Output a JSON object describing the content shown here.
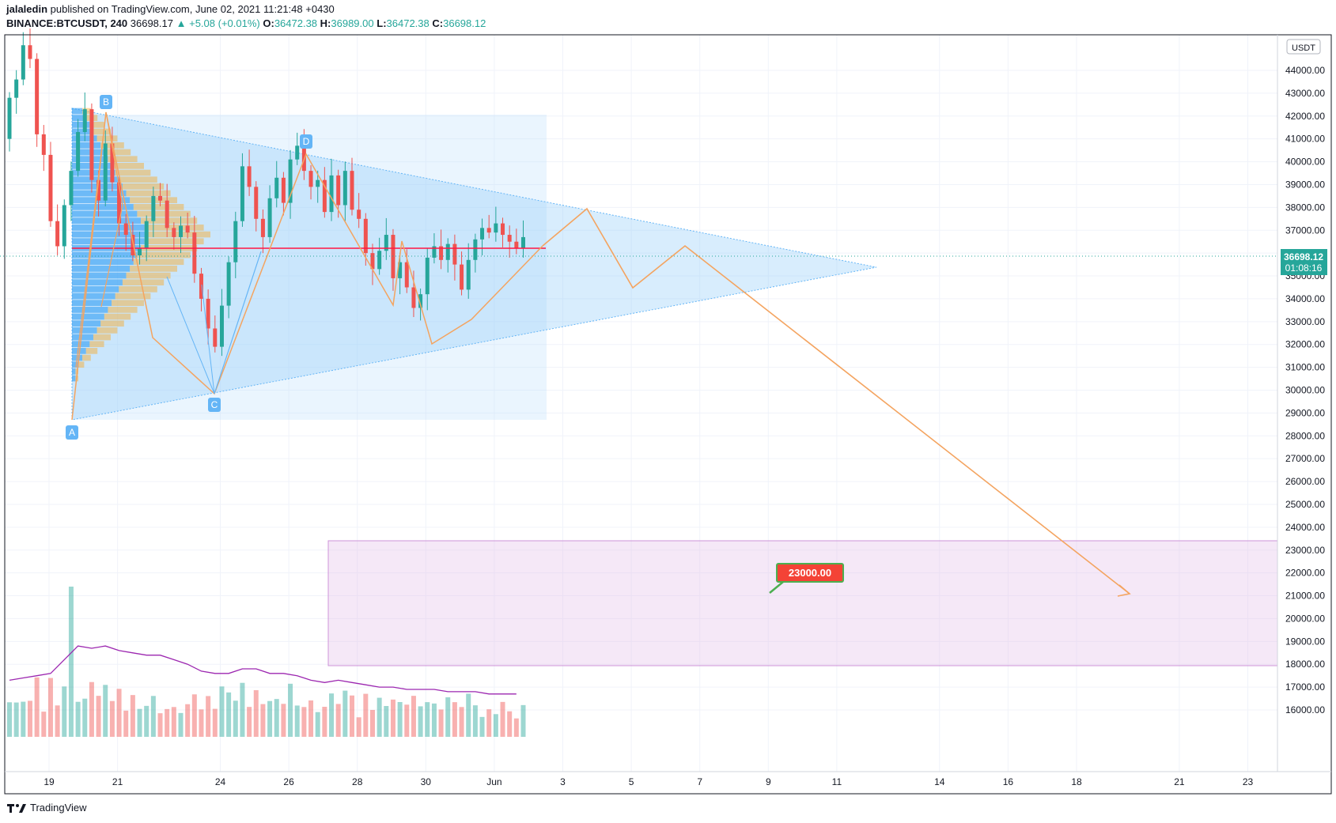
{
  "header": {
    "author": "jalaledin",
    "published": "published on TradingView.com, June 02, 2021 11:21:48 +0430",
    "symbol": "BINANCE:BTCUSDT, 240",
    "last": "36698.17",
    "change": "+5.08 (+0.01%)",
    "o_label": "O:",
    "o_val": "36472.38",
    "h_label": "H:",
    "h_val": "36989.00",
    "l_label": "L:",
    "l_val": "36472.38",
    "c_label": "C:",
    "c_val": "36698.12"
  },
  "footer": {
    "brand": "TradingView"
  },
  "colors": {
    "up": "#26a69a",
    "down": "#ef5350",
    "triangle": "#90caf9",
    "zone": "#e1bee7",
    "pattern": "#f4a460",
    "resistance": "#ff0000",
    "volume_ma": "#9c27b0",
    "target_badge": "#f44336"
  },
  "chart_data": {
    "type": "candlestick",
    "symbol": "BINANCE:BTCUSDT",
    "interval": "240",
    "currency_badge": "USDT",
    "y_ticks": [
      "44000.00",
      "43000.00",
      "42000.00",
      "41000.00",
      "40000.00",
      "39000.00",
      "38000.00",
      "37000.00",
      "36000.00",
      "35000.00",
      "34000.00",
      "33000.00",
      "32000.00",
      "31000.00",
      "30000.00",
      "29000.00",
      "28000.00",
      "27000.00",
      "26000.00",
      "25000.00",
      "24000.00",
      "23000.00",
      "22000.00",
      "21000.00",
      "20000.00",
      "19000.00",
      "18000.00",
      "17000.00",
      "16000.00"
    ],
    "x_ticks": [
      "19",
      "21",
      "24",
      "26",
      "28",
      "30",
      "Jun",
      "3",
      "5",
      "7",
      "9",
      "11",
      "14",
      "16",
      "18",
      "21",
      "23"
    ],
    "last_price_label": "36698.12",
    "countdown_label": "01:08:16",
    "pattern_points": [
      "A",
      "B",
      "C",
      "D"
    ],
    "target_label": "23000.00",
    "target_zone": [
      20000,
      25000
    ],
    "resistance": 37000,
    "closes": [
      42800,
      43600,
      45100,
      44500,
      41200,
      40300,
      37400,
      36300,
      38100,
      39600,
      41300,
      42300,
      39200,
      38300,
      40800,
      39100,
      37300,
      36800,
      35900,
      36200,
      37400,
      38500,
      38300,
      37100,
      36700,
      37200,
      36900,
      35100,
      34000,
      32700,
      31900,
      33700,
      35600,
      37400,
      39800,
      38900,
      37500,
      36700,
      38400,
      39300,
      38200,
      40100,
      40700,
      39600,
      38900,
      39200,
      37800,
      39400,
      38100,
      39600,
      37900,
      37500,
      36000,
      35300,
      36100,
      36800,
      34900,
      35600,
      34500,
      33600,
      34200,
      35800,
      36300,
      35700,
      36400,
      35500,
      34400,
      35700,
      36600,
      37100,
      36900,
      37300,
      36800,
      36500,
      36200,
      36700
    ],
    "volume_ma": [
      17300,
      17400,
      17500,
      17600,
      18200,
      18800,
      18700,
      18800,
      18600,
      18500,
      18400,
      18400,
      18200,
      18000,
      17700,
      17600,
      17600,
      17800,
      17800,
      17600,
      17600,
      17500,
      17300,
      17200,
      17300,
      17200,
      17100,
      17000,
      17000,
      16900,
      16900,
      16900,
      16800,
      16800,
      16800,
      16700,
      16700,
      16700
    ]
  }
}
